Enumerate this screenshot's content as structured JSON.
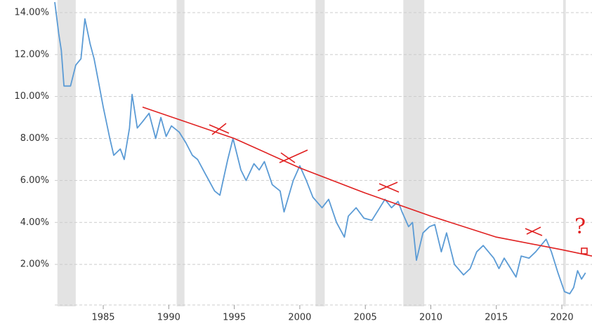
{
  "chart_data": {
    "type": "line",
    "xlim": [
      1981.3,
      2022.3
    ],
    "ylim": [
      0,
      14.6
    ],
    "xticks": [
      1985,
      1990,
      1995,
      2000,
      2005,
      2010,
      2015,
      2020
    ],
    "yticks": [
      {
        "value": 2,
        "label": "2.00%"
      },
      {
        "value": 4,
        "label": "4.00%"
      },
      {
        "value": 6,
        "label": "6.00%"
      },
      {
        "value": 8,
        "label": "8.00%"
      },
      {
        "value": 10,
        "label": "10.00%"
      },
      {
        "value": 12,
        "label": "12.00%"
      },
      {
        "value": 14,
        "label": "14.00%"
      }
    ],
    "grid": true,
    "recessions": [
      [
        1981.5,
        1982.9
      ],
      [
        1990.6,
        1991.2
      ],
      [
        2001.2,
        2001.9
      ],
      [
        2007.9,
        2009.5
      ],
      [
        2020.1,
        2020.3
      ]
    ],
    "recession_color": "#e3e3e3",
    "series": [
      {
        "color": "#5b9bd5",
        "x": [
          1981.3,
          1981.6,
          1981.8,
          1982.0,
          1982.5,
          1982.9,
          1983.3,
          1983.6,
          1984.0,
          1984.3,
          1984.7,
          1985.0,
          1985.5,
          1985.8,
          1986.3,
          1986.6,
          1987.0,
          1987.2,
          1987.6,
          1988.0,
          1988.5,
          1989.0,
          1989.4,
          1989.8,
          1990.2,
          1990.8,
          1991.3,
          1991.8,
          1992.2,
          1992.8,
          1993.5,
          1993.9,
          1994.5,
          1994.9,
          1995.5,
          1995.9,
          1996.5,
          1996.9,
          1997.3,
          1997.9,
          1998.5,
          1998.8,
          1999.5,
          2000.0,
          2000.5,
          2001.0,
          2001.7,
          2002.2,
          2002.8,
          2003.4,
          2003.7,
          2004.3,
          2004.9,
          2005.5,
          2006.0,
          2006.5,
          2007.0,
          2007.5,
          2007.8,
          2008.3,
          2008.6,
          2008.9,
          2009.4,
          2009.9,
          2010.3,
          2010.8,
          2011.2,
          2011.8,
          2012.5,
          2013.0,
          2013.5,
          2014.0,
          2014.8,
          2015.2,
          2015.6,
          2016.5,
          2016.9,
          2017.5,
          2018.0,
          2018.8,
          2019.2,
          2019.7,
          2020.2,
          2020.6,
          2020.9,
          2021.2,
          2021.5,
          2021.8
        ],
        "values": [
          14.5,
          13.0,
          12.2,
          10.5,
          10.5,
          11.5,
          11.8,
          13.7,
          12.5,
          11.8,
          10.5,
          9.5,
          8.0,
          7.2,
          7.5,
          7.0,
          8.5,
          10.1,
          8.5,
          8.8,
          9.2,
          8.0,
          9.0,
          8.1,
          8.6,
          8.3,
          7.8,
          7.2,
          7.0,
          6.3,
          5.5,
          5.3,
          7.0,
          8.0,
          6.5,
          6.0,
          6.8,
          6.5,
          6.9,
          5.8,
          5.5,
          4.5,
          6.0,
          6.7,
          6.0,
          5.2,
          4.7,
          5.1,
          4.0,
          3.3,
          4.3,
          4.7,
          4.2,
          4.1,
          4.6,
          5.1,
          4.7,
          5.0,
          4.5,
          3.8,
          4.0,
          2.2,
          3.5,
          3.8,
          3.9,
          2.6,
          3.5,
          2.0,
          1.5,
          1.8,
          2.6,
          2.9,
          2.3,
          1.8,
          2.3,
          1.4,
          2.4,
          2.3,
          2.6,
          3.2,
          2.6,
          1.6,
          0.7,
          0.6,
          0.9,
          1.7,
          1.3,
          1.6
        ]
      },
      {
        "color": "#e02020",
        "x": [
          1988.0,
          1995.0,
          2000.0,
          2005.0,
          2010.0,
          2015.0,
          2020.0,
          2022.3
        ],
        "values": [
          9.5,
          8.0,
          6.6,
          5.4,
          4.3,
          3.3,
          2.7,
          2.4
        ]
      }
    ],
    "annotations": [
      "?"
    ]
  }
}
